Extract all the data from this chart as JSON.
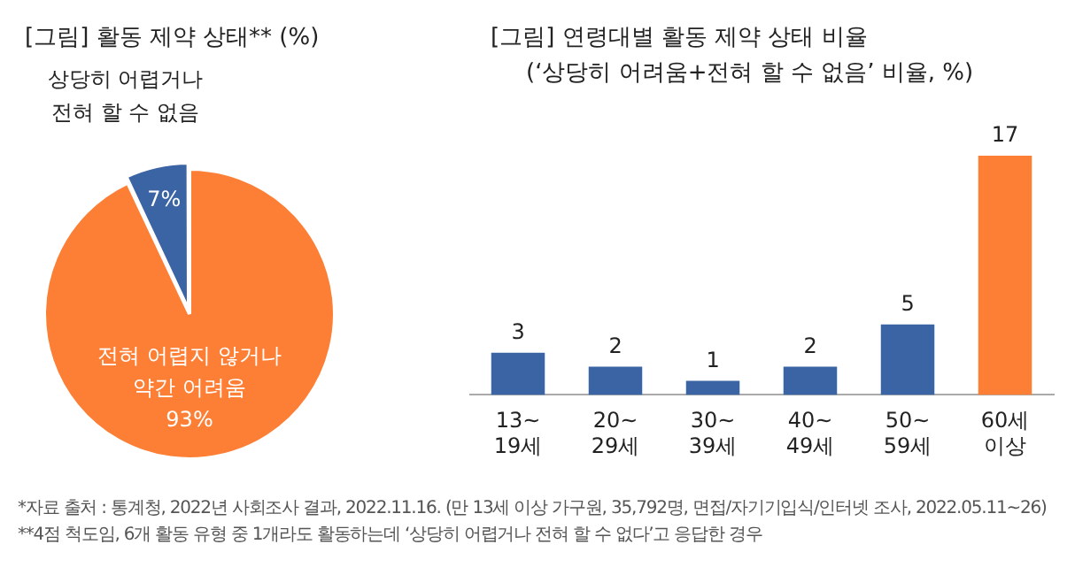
{
  "chart_data": [
    {
      "type": "pie",
      "title": "[그림] 활동 제약 상태** (%)",
      "categories": [
        "전혀 어렵지 않거나\n약간 어려움",
        "상당히 어렵거나\n전혀 할 수 없음"
      ],
      "values": [
        93,
        7
      ],
      "colors": [
        "#fd7f35",
        "#3b64a5"
      ],
      "value_labels": [
        "93%",
        "7%"
      ],
      "annotations": [
        "*자료 출처 : 통계청, 2022년 사회조사 결과, 2022.11.16. (만 13세 이상 가구원, 35,792명, 면접/자기기입식/인터넷 조사, 2022.05.11~26)",
        "**4점 척도임, 6개 활동 유형 중 1개라도 활동하는데 ‘상당히 어렵거나 전혀 할 수 없다’고 응답한 경우"
      ]
    },
    {
      "type": "bar",
      "title": "[그림] 연령대별 활동 제약 상태 비율",
      "subtitle": "(‘상당히 어려움+전혀 할 수 없음’ 비율, %)",
      "categories": [
        "13~\n19세",
        "20~\n29세",
        "30~\n39세",
        "40~\n49세",
        "50~\n59세",
        "60세\n이상"
      ],
      "values": [
        3,
        2,
        1,
        2,
        5,
        17
      ],
      "colors": [
        "#3b64a5",
        "#3b64a5",
        "#3b64a5",
        "#3b64a5",
        "#3b64a5",
        "#fd7f35"
      ],
      "data_labels": true,
      "grid": false
    }
  ]
}
